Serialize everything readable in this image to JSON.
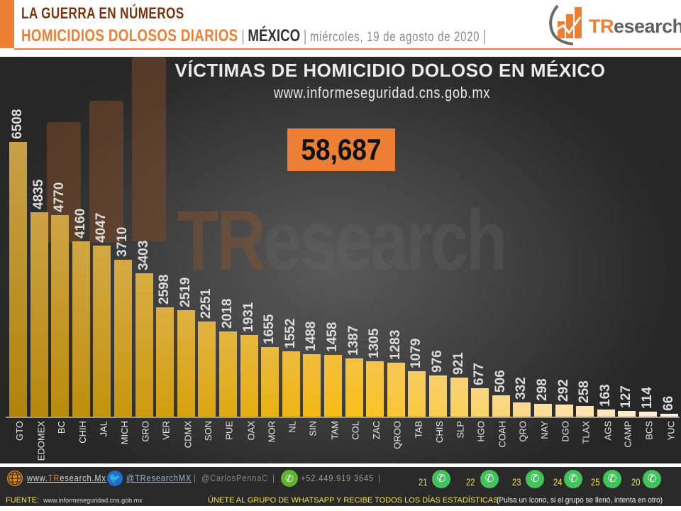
{
  "header": {
    "line1": "LA GUERRA EN NÚMEROS",
    "line2_main": "HOMICIDIOS DOLOSOS DIARIOS",
    "separator": "|",
    "region": "MÉXICO",
    "date": "miércoles, 19 de agosto de 2020",
    "logo_prefix": "TR",
    "logo_suffix": "esearch"
  },
  "colors": {
    "accent": "#ec7f33",
    "title_dark": "#7a3510",
    "bar_top_gold": "#b8860b",
    "bar_light": "#fbeed3",
    "panel_bg": "#3a3a3a"
  },
  "chart": {
    "title": "VÍCTIMAS DE HOMICIDIO DOLOSO EN MÉXICO",
    "subtitle": "www.informeseguridad.cns.gob.mx",
    "total": "58,687",
    "watermark_prefix": "TR",
    "watermark_suffix": "esearch"
  },
  "chart_data": {
    "type": "bar",
    "title": "VÍCTIMAS DE HOMICIDIO DOLOSO EN MÉXICO",
    "subtitle": "www.informeseguridad.cns.gob.mx",
    "annotation": "58,687",
    "xlabel": "",
    "ylabel": "",
    "grid": false,
    "legend": null,
    "categories": [
      "GTO",
      "EDOMEX",
      "BC",
      "CHIH",
      "JAL",
      "MICH",
      "GRO",
      "VER",
      "CDMX",
      "SON",
      "PUE",
      "OAX",
      "MOR",
      "NL",
      "SIN",
      "TAM",
      "COL",
      "ZAC",
      "QROO",
      "TAB",
      "CHIS",
      "SLP",
      "HGO",
      "COAH",
      "QRO",
      "NAY",
      "DGO",
      "TLAX",
      "AGS",
      "CAMP",
      "BCS",
      "YUC"
    ],
    "values": [
      6508,
      4835,
      4770,
      4160,
      4047,
      3710,
      3403,
      2598,
      2519,
      2251,
      2018,
      1931,
      1655,
      1552,
      1488,
      1458,
      1387,
      1305,
      1283,
      1079,
      976,
      921,
      677,
      506,
      332,
      298,
      292,
      258,
      163,
      127,
      114,
      66
    ],
    "ylim": [
      0,
      6508
    ]
  },
  "footer": {
    "website_prefix": "www.",
    "website_tr": "TR",
    "website_suffix": "esearch.Mx",
    "twitter": "@TResearchMX",
    "personal": "@CarlosPennaC",
    "phone": "+52.449.919 3645",
    "sep": "|",
    "whatsapp_groups": [
      "21",
      "22",
      "23",
      "24",
      "25",
      "20"
    ],
    "source_label": "FUENTE:",
    "source_url": "www.informeseguridad.cns.gob.mx",
    "cta": "ÚNETE  AL GRUPO  DE  WHATSAPP  Y RECIBE  TODOS LOS DÍAS ESTADÍSTICAS",
    "cta_note": "(Pulsa un ícono, si el grupo se llenó, intenta en otro)"
  }
}
